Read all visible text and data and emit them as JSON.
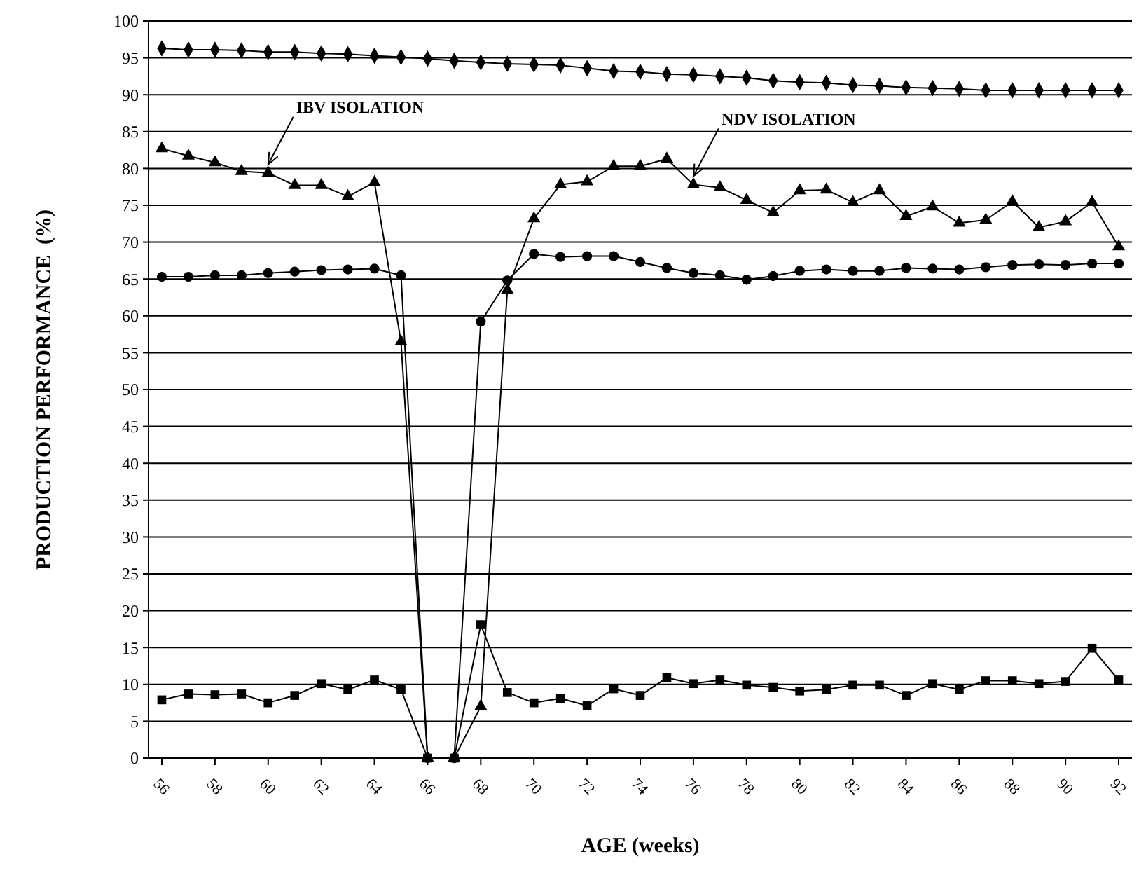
{
  "chart_data": {
    "type": "line",
    "xlabel": "AGE (weeks)",
    "ylabel": "PRODUCTION PERFORMANCE  (%)",
    "x": [
      56,
      57,
      58,
      59,
      60,
      61,
      62,
      63,
      64,
      65,
      66,
      67,
      68,
      69,
      70,
      71,
      72,
      73,
      74,
      75,
      76,
      77,
      78,
      79,
      80,
      81,
      82,
      83,
      84,
      85,
      86,
      87,
      88,
      89,
      90,
      91,
      92
    ],
    "xlim": [
      55.5,
      92.5
    ],
    "xticks": [
      56,
      58,
      60,
      62,
      64,
      66,
      68,
      70,
      72,
      74,
      76,
      78,
      80,
      82,
      84,
      86,
      88,
      90,
      92
    ],
    "ylim": [
      0,
      100
    ],
    "yticks": [
      0,
      5,
      10,
      15,
      20,
      25,
      30,
      35,
      40,
      45,
      50,
      55,
      60,
      65,
      70,
      75,
      80,
      85,
      90,
      95,
      100
    ],
    "grid": "y",
    "line_style": "solid",
    "series": [
      {
        "color": "#000000",
        "marker": "diamond",
        "values": [
          96.3,
          96.1,
          96.1,
          96.0,
          95.8,
          95.8,
          95.6,
          95.5,
          95.3,
          95.1,
          94.9,
          94.6,
          94.4,
          94.2,
          94.1,
          94.0,
          93.6,
          93.2,
          93.1,
          92.8,
          92.7,
          92.5,
          92.3,
          91.9,
          91.7,
          91.6,
          91.3,
          91.2,
          91.0,
          90.9,
          90.8,
          90.6,
          90.6,
          90.6,
          90.6,
          90.6,
          90.6
        ]
      },
      {
        "color": "#000000",
        "marker": "triangle",
        "values": [
          82.7,
          81.7,
          80.8,
          79.6,
          79.4,
          77.7,
          77.7,
          76.2,
          78.1,
          56.5,
          0,
          0,
          7,
          63.5,
          73.2,
          77.8,
          78.2,
          80.3,
          80.3,
          81.3,
          77.8,
          77.4,
          75.7,
          74.0,
          77.0,
          77.1,
          75.4,
          77.0,
          73.5,
          74.8,
          72.6,
          73.0,
          75.5,
          72.0,
          72.8,
          75.4,
          69.4
        ]
      },
      {
        "color": "#000000",
        "marker": "circle",
        "values": [
          65.3,
          65.3,
          65.5,
          65.5,
          65.8,
          66.0,
          66.2,
          66.3,
          66.4,
          65.5,
          0,
          0,
          59.2,
          64.8,
          68.4,
          68.0,
          68.1,
          68.1,
          67.3,
          66.5,
          65.8,
          65.5,
          64.9,
          65.4,
          66.1,
          66.3,
          66.1,
          66.1,
          66.5,
          66.4,
          66.3,
          66.6,
          66.9,
          67.0,
          66.9,
          67.1,
          67.1
        ]
      },
      {
        "color": "#000000",
        "marker": "square",
        "values": [
          7.9,
          8.7,
          8.6,
          8.7,
          7.5,
          8.5,
          10.1,
          9.3,
          10.6,
          9.3,
          0,
          0,
          18.1,
          8.9,
          7.5,
          8.1,
          7.1,
          9.4,
          8.5,
          10.9,
          10.1,
          10.6,
          9.9,
          9.6,
          9.1,
          9.3,
          9.9,
          9.9,
          8.5,
          10.1,
          9.3,
          10.5,
          10.5,
          10.1,
          10.4,
          14.9,
          10.6
        ]
      }
    ],
    "annotations": [
      {
        "text": "IBV ISOLATION",
        "x": 60,
        "y": 79.4
      },
      {
        "text": "NDV ISOLATION",
        "x": 76,
        "y": 77.8
      }
    ]
  }
}
